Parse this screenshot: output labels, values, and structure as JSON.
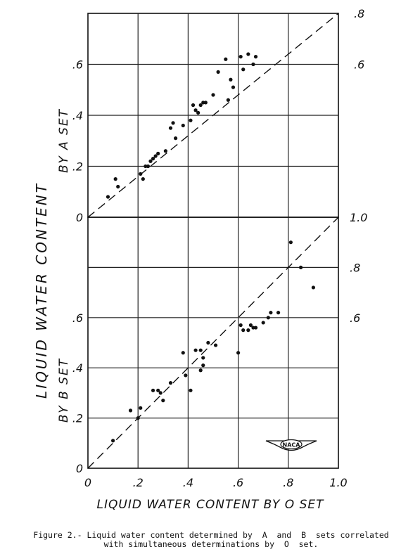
{
  "chart_data": [
    {
      "type": "scatter",
      "xlim": [
        0,
        1.0
      ],
      "ylim": [
        0,
        0.8
      ],
      "xticks": [
        "0",
        ".2",
        ".4",
        ".6",
        ".8",
        "1.0"
      ],
      "yticks_left": [
        "0",
        ".2",
        ".4",
        ".6"
      ],
      "yticks_right": [
        ".6",
        ".8"
      ],
      "ylabel": "BY A SET",
      "grid": true,
      "reference_line": "y = x (dashed)",
      "series": [
        {
          "x": [
            0.08,
            0.11,
            0.12,
            0.21,
            0.22,
            0.23,
            0.24,
            0.25,
            0.26,
            0.27,
            0.28,
            0.31,
            0.33,
            0.34,
            0.35,
            0.38,
            0.41,
            0.42,
            0.43,
            0.44,
            0.45,
            0.46,
            0.47,
            0.5,
            0.52,
            0.55,
            0.56,
            0.57,
            0.58,
            0.61,
            0.62,
            0.64,
            0.66,
            0.67
          ],
          "y": [
            0.08,
            0.15,
            0.12,
            0.17,
            0.15,
            0.2,
            0.2,
            0.22,
            0.23,
            0.24,
            0.25,
            0.26,
            0.35,
            0.37,
            0.31,
            0.36,
            0.38,
            0.44,
            0.42,
            0.41,
            0.44,
            0.45,
            0.45,
            0.48,
            0.57,
            0.62,
            0.46,
            0.54,
            0.51,
            0.63,
            0.58,
            0.64,
            0.6,
            0.63
          ]
        }
      ]
    },
    {
      "type": "scatter",
      "xlim": [
        0,
        1.0
      ],
      "ylim": [
        0,
        1.0
      ],
      "xticks": [
        "0",
        ".2",
        ".4",
        ".6",
        ".8",
        "1.0"
      ],
      "yticks_left": [
        "0",
        ".2",
        ".4",
        ".6"
      ],
      "yticks_right": [
        ".6",
        ".8",
        "1.0"
      ],
      "xlabel": "LIQUID WATER CONTENT BY O SET",
      "ylabel": "BY B SET",
      "grid": true,
      "reference_line": "y = x (dashed)",
      "series": [
        {
          "x": [
            0.1,
            0.17,
            0.2,
            0.21,
            0.26,
            0.28,
            0.29,
            0.3,
            0.33,
            0.38,
            0.39,
            0.41,
            0.43,
            0.45,
            0.45,
            0.46,
            0.46,
            0.48,
            0.51,
            0.6,
            0.61,
            0.62,
            0.64,
            0.65,
            0.66,
            0.67,
            0.7,
            0.72,
            0.73,
            0.76,
            0.81,
            0.85,
            0.9
          ],
          "y": [
            0.11,
            0.23,
            0.2,
            0.24,
            0.31,
            0.31,
            0.3,
            0.27,
            0.34,
            0.46,
            0.37,
            0.31,
            0.47,
            0.47,
            0.39,
            0.41,
            0.44,
            0.5,
            0.49,
            0.46,
            0.57,
            0.55,
            0.55,
            0.57,
            0.56,
            0.56,
            0.58,
            0.6,
            0.62,
            0.62,
            0.9,
            0.8,
            0.72
          ]
        }
      ]
    }
  ],
  "shared_ylabel": "LIQUID WATER CONTENT",
  "logo_text": "NACA",
  "caption_line1": "Figure 2.- Liquid water content determined by  A  and  B  sets correlated",
  "caption_line2": "with simultaneous determinations by  O  set."
}
